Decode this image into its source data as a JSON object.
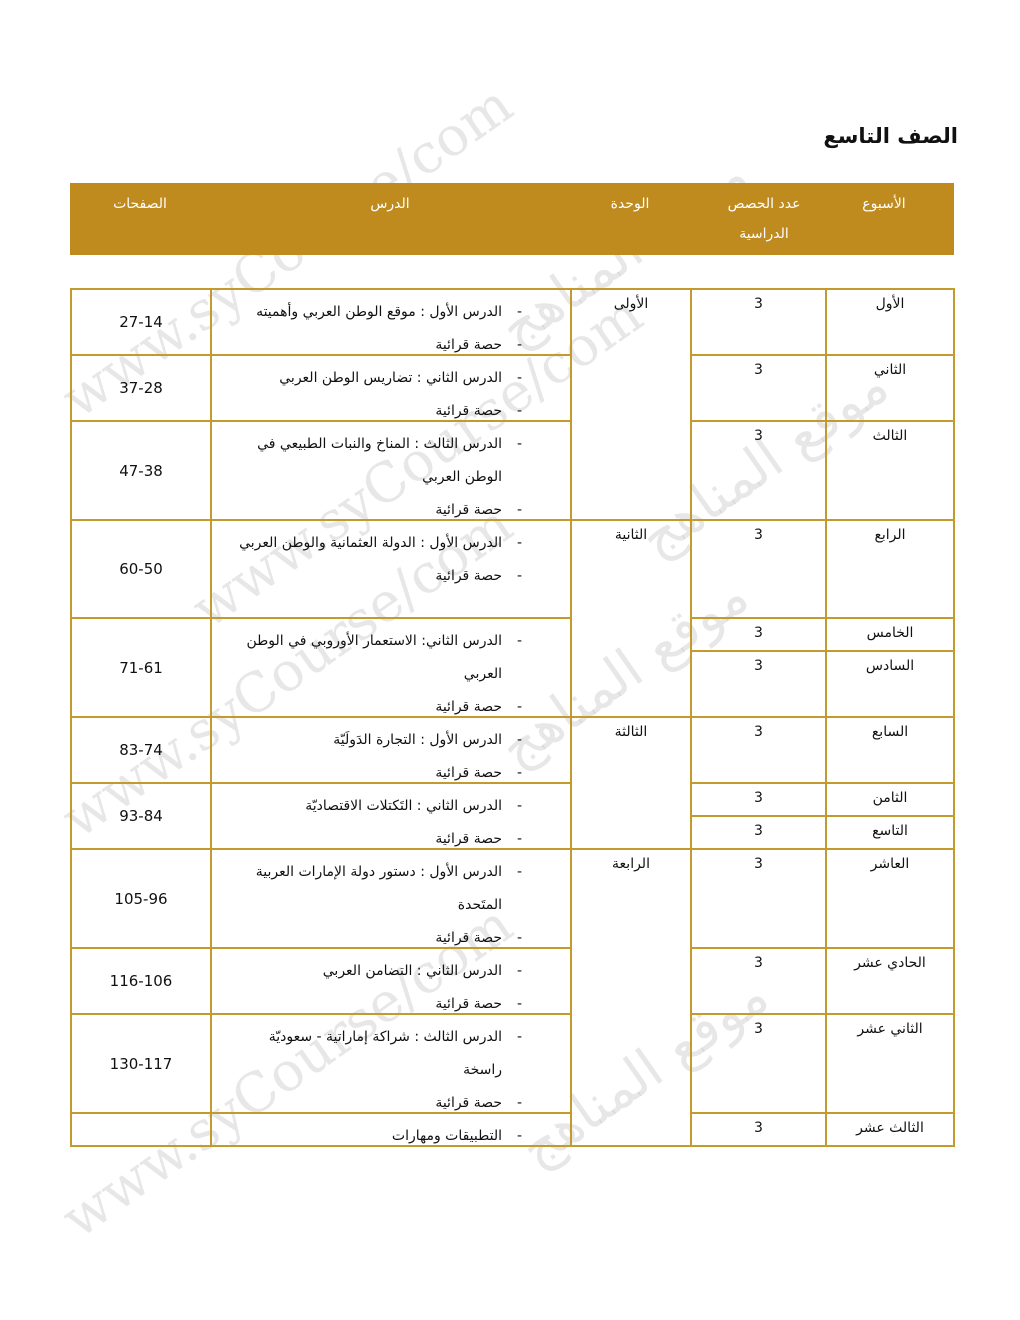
{
  "title": "الصف التاسع",
  "header": {
    "week": "الأسبوع",
    "count": "عدد الحصص الدراسية",
    "unit": "الوحدة",
    "lesson": "الدرس",
    "pages": "الصفحات"
  },
  "accent_color": "#bf8a1e",
  "border_color": "#c49a2e",
  "watermark": {
    "url": "www.syCourse/com",
    "arabic": "موقع المناهج"
  },
  "weeks": [
    {
      "name": "الأول",
      "count": "3"
    },
    {
      "name": "الثاني",
      "count": "3"
    },
    {
      "name": "الثالث",
      "count": "3"
    },
    {
      "name": "الرابع",
      "count": "3"
    },
    {
      "name": "الخامس",
      "count": "3"
    },
    {
      "name": "السادس",
      "count": "3"
    },
    {
      "name": "السابع",
      "count": "3"
    },
    {
      "name": "الثامن",
      "count": "3"
    },
    {
      "name": "التاسع",
      "count": "3"
    },
    {
      "name": "العاشر",
      "count": "3"
    },
    {
      "name": "الحادي عشر",
      "count": "3"
    },
    {
      "name": "الثاني عشر",
      "count": "3"
    },
    {
      "name": "الثالث عشر",
      "count": "3"
    }
  ],
  "units": [
    "الأولى",
    "الثانية",
    "الثالثة",
    "الرابعة"
  ],
  "lessons": [
    {
      "items": [
        "الدرس الأول : موقع الوطن العربي وأهميته",
        "حصة قرائية"
      ],
      "pages": "27-14"
    },
    {
      "items": [
        "الدرس الثاني : تضاريس الوطن العربي",
        "حصة قرائية"
      ],
      "pages": "37-28"
    },
    {
      "items": [
        "الدرس الثالث : المناخ والنبات الطبيعي في الوطن العربي",
        "حصة قرائية"
      ],
      "pages": "47-38"
    },
    {
      "items": [
        "الدرس الأول : الدولة العثمانية والوطن العربي",
        "حصة قرائية"
      ],
      "pages": "60-50"
    },
    {
      "items": [
        "الدرس الثاني: الاستعمار الأوروبي في الوطن العربي",
        "حصة قرائية"
      ],
      "pages": "71-61"
    },
    {
      "items": [
        "الدرس الأول : التجارة الدَولَيّة",
        "حصة قرائية"
      ],
      "pages": "83-74"
    },
    {
      "items": [
        "الدرس الثاني : التَكتلات الاقتصاديّة",
        "حصة قرائية"
      ],
      "pages": "93-84"
    },
    {
      "items": [
        "الدرس الأول : دستور دولة الإمارات العربية المتَحدة",
        "حصة قرائية"
      ],
      "pages": "105-96"
    },
    {
      "items": [
        "الدرس الثاني : التضامن العربي",
        "حصة قرائية"
      ],
      "pages": "116-106"
    },
    {
      "items": [
        "الدرس الثالث : شراكة إماراتية - سعوديّة راسخة",
        "حصة قرائية"
      ],
      "pages": "130-117"
    },
    {
      "items": [
        "التطبيقات ومهارات"
      ],
      "pages": ""
    }
  ]
}
